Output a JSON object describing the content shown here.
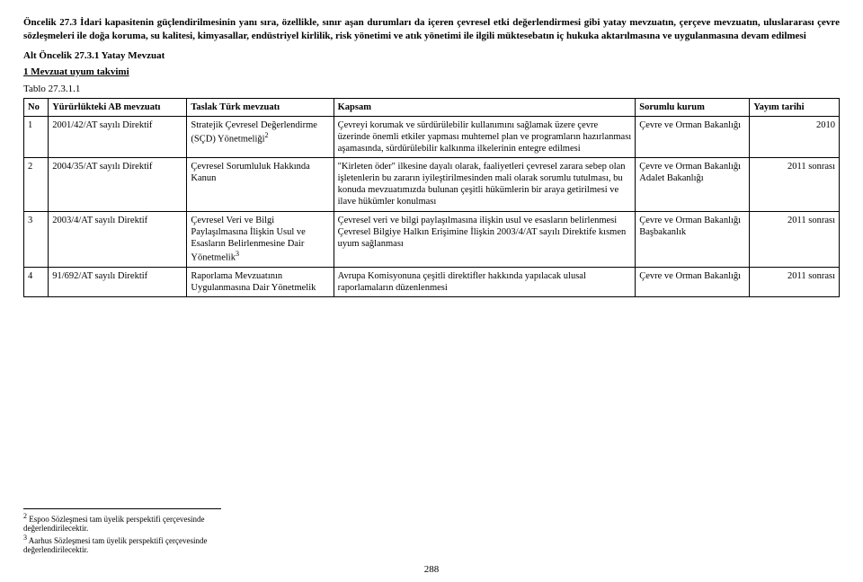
{
  "heading_main": "Öncelik 27.3 İdari kapasitenin güçlendirilmesinin yanı sıra, özellikle, sınır aşan durumları da içeren çevresel etki değerlendirmesi gibi yatay mevzuatın, çerçeve mevzuatın, uluslararası çevre sözleşmeleri ile doğa koruma, su kalitesi, kimyasallar, endüstriyel kirlilik, risk yönetimi ve atık yönetimi ile ilgili müktesebatın iç hukuka aktarılmasına ve uygulanmasına devam edilmesi",
  "sub1": "Alt Öncelik 27.3.1 Yatay Mevzuat",
  "sub2": "1 Mevzuat uyum takvimi",
  "table_label": "Tablo 27.3.1.1",
  "cols": {
    "no": "No",
    "eu": "Yürürlükteki AB mevzuatı",
    "draft": "Taslak Türk mevzuatı",
    "scope": "Kapsam",
    "resp": "Sorumlu kurum",
    "date": "Yayım tarihi"
  },
  "rows": [
    {
      "no": "1",
      "eu": "2001/42/AT sayılı Direktif",
      "draft": "Stratejik Çevresel Değerlendirme (SÇD) Yönetmeliği",
      "draft_sup": "2",
      "scope": "Çevreyi korumak ve sürdürülebilir kullanımını sağlamak üzere çevre üzerinde önemli etkiler yapması muhtemel plan ve programların hazırlanması aşamasında, sürdürülebilir kalkınma ilkelerinin entegre edilmesi",
      "resp": "Çevre ve Orman Bakanlığı",
      "date": "2010"
    },
    {
      "no": "2",
      "eu": "2004/35/AT sayılı Direktif",
      "draft": "Çevresel Sorumluluk Hakkında Kanun",
      "scope": "\"Kirleten öder\" ilkesine dayalı olarak, faaliyetleri çevresel zarara sebep olan işletenlerin bu zararın iyileştirilmesinden mali olarak sorumlu tutulması, bu konuda mevzuatımızda bulunan çeşitli hükümlerin bir araya getirilmesi ve ilave hükümler konulması",
      "resp": "Çevre ve Orman Bakanlığı\nAdalet Bakanlığı",
      "date": "2011 sonrası"
    },
    {
      "no": "3",
      "eu": "2003/4/AT sayılı Direktif",
      "draft": "Çevresel Veri ve Bilgi Paylaşılmasına İlişkin Usul ve Esasların Belirlenmesine Dair Yönetmelik",
      "draft_sup": "3",
      "scope": "Çevresel veri ve bilgi paylaşılmasına ilişkin usul ve esasların belirlenmesi\nÇevresel Bilgiye Halkın Erişimine İlişkin 2003/4/AT sayılı Direktife kısmen uyum sağlanması",
      "resp": "Çevre ve Orman Bakanlığı\nBaşbakanlık",
      "date": "2011 sonrası"
    },
    {
      "no": "4",
      "eu": "91/692/AT sayılı Direktif",
      "draft": "Raporlama Mevzuatının Uygulanmasına Dair Yönetmelik",
      "scope": "Avrupa Komisyonuna çeşitli direktifler hakkında yapılacak ulusal raporlamaların düzenlenmesi",
      "resp": "Çevre ve Orman Bakanlığı",
      "date": "2011 sonrası"
    }
  ],
  "footnotes": {
    "f2": "Espoo Sözleşmesi tam üyelik perspektifi çerçevesinde değerlendirilecektir.",
    "f3": "Aarhus Sözleşmesi tam üyelik perspektifi çerçevesinde değerlendirilecektir."
  },
  "page_number": "288",
  "col_widths": {
    "no": "3%",
    "eu": "17%",
    "draft": "18%",
    "scope": "37%",
    "resp": "14%",
    "date": "11%"
  }
}
